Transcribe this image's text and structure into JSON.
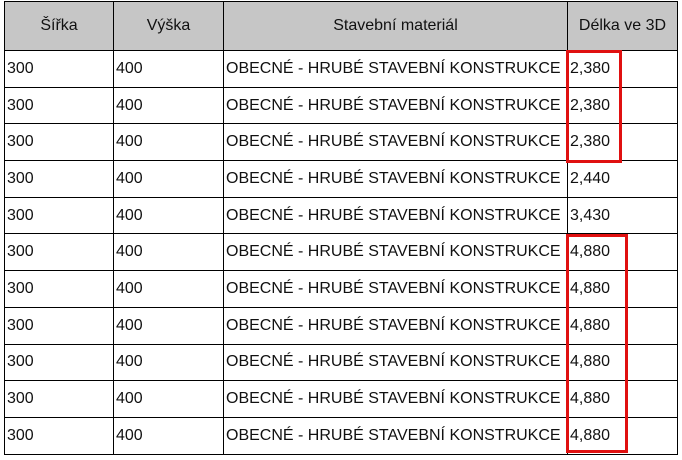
{
  "headers": [
    "Šířka",
    "Výška",
    "Stavební materiál",
    "Délka ve 3D"
  ],
  "rows": [
    [
      "300",
      "400",
      "OBECNÉ - HRUBÉ STAVEBNÍ KONSTRUKCE",
      "2,380"
    ],
    [
      "300",
      "400",
      "OBECNÉ - HRUBÉ STAVEBNÍ KONSTRUKCE",
      "2,380"
    ],
    [
      "300",
      "400",
      "OBECNÉ - HRUBÉ STAVEBNÍ KONSTRUKCE",
      "2,380"
    ],
    [
      "300",
      "400",
      "OBECNÉ - HRUBÉ STAVEBNÍ KONSTRUKCE",
      "2,440"
    ],
    [
      "300",
      "400",
      "OBECNÉ - HRUBÉ STAVEBNÍ KONSTRUKCE",
      "3,430"
    ],
    [
      "300",
      "400",
      "OBECNÉ - HRUBÉ STAVEBNÍ KONSTRUKCE",
      "4,880"
    ],
    [
      "300",
      "400",
      "OBECNÉ - HRUBÉ STAVEBNÍ KONSTRUKCE",
      "4,880"
    ],
    [
      "300",
      "400",
      "OBECNÉ - HRUBÉ STAVEBNÍ KONSTRUKCE",
      "4,880"
    ],
    [
      "300",
      "400",
      "OBECNÉ - HRUBÉ STAVEBNÍ KONSTRUKCE",
      "4,880"
    ],
    [
      "300",
      "400",
      "OBECNÉ - HRUBÉ STAVEBNÍ KONSTRUKCE",
      "4,880"
    ],
    [
      "300",
      "400",
      "OBECNÉ - HRUBÉ STAVEBNÍ KONSTRUKCE",
      "4,880"
    ]
  ],
  "highlight_color": "#e01010"
}
